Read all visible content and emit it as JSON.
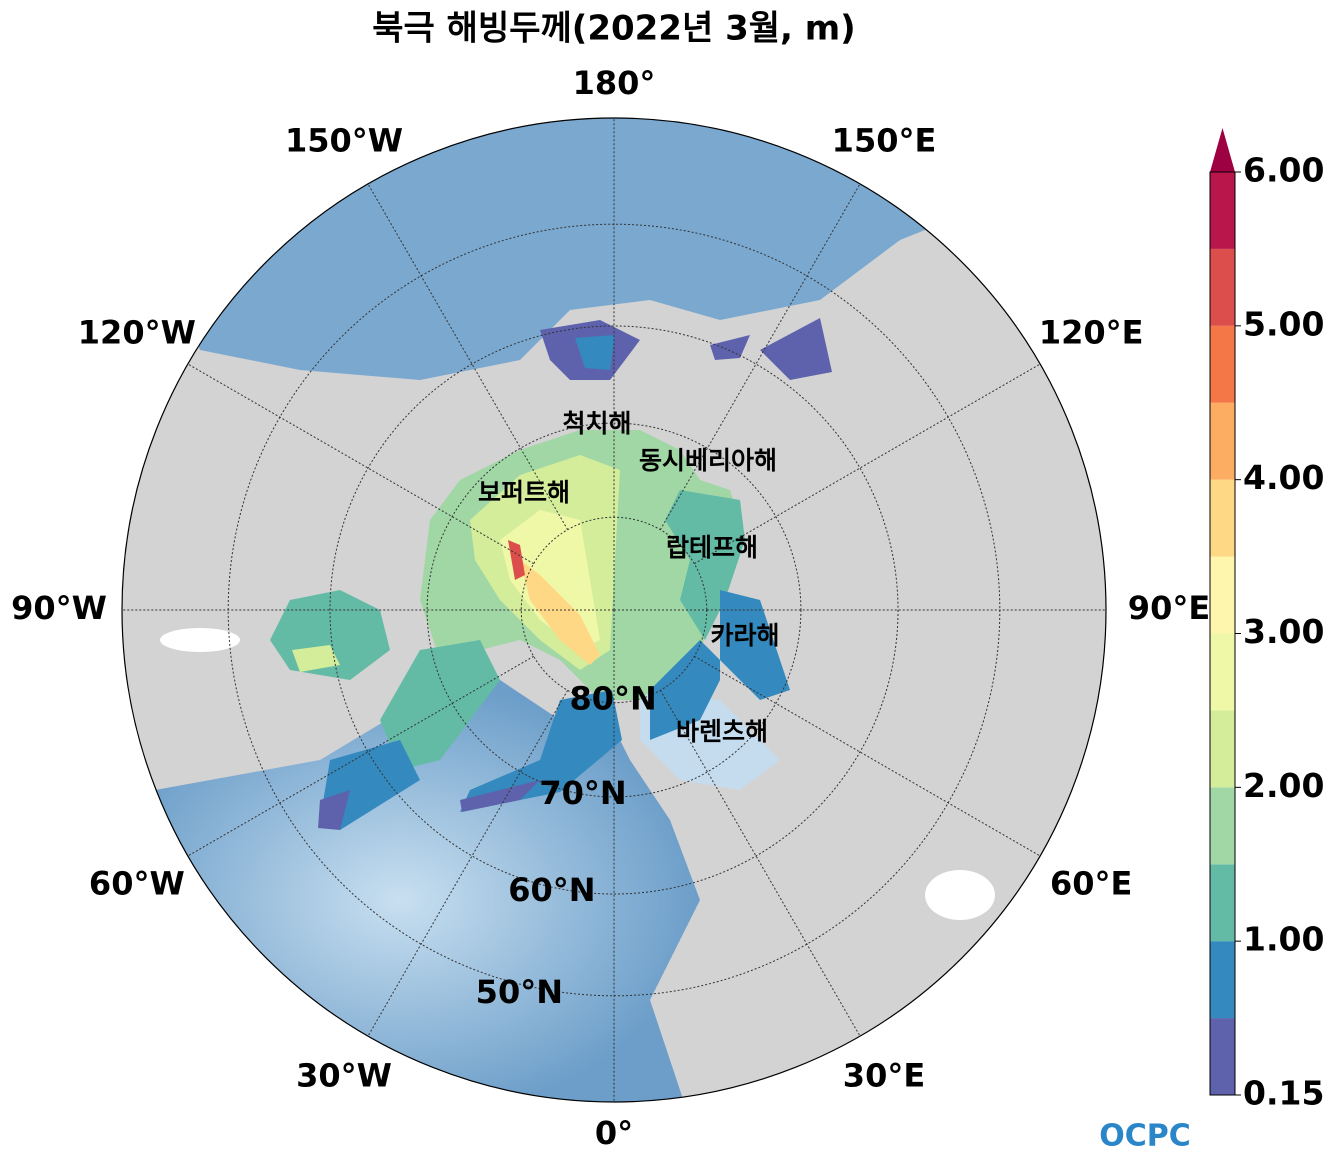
{
  "title": "북극 해빙두께(2022년 3월, m)",
  "map": {
    "longitude_labels": [
      {
        "value": 180,
        "label": "180°"
      },
      {
        "value": 150,
        "label": "150°E"
      },
      {
        "value": 120,
        "label": "120°E"
      },
      {
        "value": 90,
        "label": "90°E"
      },
      {
        "value": 60,
        "label": "60°E"
      },
      {
        "value": 30,
        "label": "30°E"
      },
      {
        "value": 0,
        "label": "0°"
      },
      {
        "value": -30,
        "label": "30°W"
      },
      {
        "value": -60,
        "label": "60°W"
      },
      {
        "value": -90,
        "label": "90°W"
      },
      {
        "value": -120,
        "label": "120°W"
      },
      {
        "value": -150,
        "label": "150°W"
      }
    ],
    "latitude_labels": [
      {
        "value": 80,
        "label": "80°N"
      },
      {
        "value": 70,
        "label": "70°N"
      },
      {
        "value": 60,
        "label": "60°N"
      },
      {
        "value": 50,
        "label": "50°N"
      }
    ],
    "seas": [
      "척치해",
      "동시베리아해",
      "보퍼트해",
      "랍테프해",
      "카라해",
      "바렌츠해"
    ]
  },
  "colorbar": {
    "levels": [
      0.15,
      0.5,
      1,
      1.5,
      2,
      2.5,
      3,
      3.5,
      4,
      4.5,
      5,
      5.5,
      6
    ],
    "colors": [
      "#5e62ad",
      "#3489be",
      "#63bba6",
      "#a0d7a4",
      "#d4ed9b",
      "#eff8a7",
      "#fff6ad",
      "#fed884",
      "#fdad62",
      "#f47847",
      "#dc4e4b",
      "#b9174b"
    ],
    "extend_color": "#9e0142",
    "ticks": [
      {
        "value": 0.15,
        "label": "0.15"
      },
      {
        "value": 1,
        "label": "1.00"
      },
      {
        "value": 2,
        "label": "2.00"
      },
      {
        "value": 3,
        "label": "3.00"
      },
      {
        "value": 4,
        "label": "4.00"
      },
      {
        "value": 5,
        "label": "5.00"
      },
      {
        "value": 6,
        "label": "6.00"
      }
    ]
  },
  "logo": "OCPC"
}
